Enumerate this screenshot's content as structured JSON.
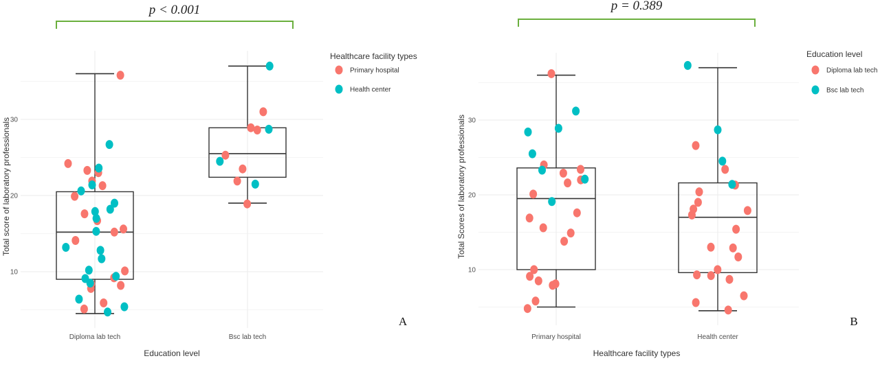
{
  "chart_data": [
    {
      "panel_letter": "A",
      "type": "box+scatter",
      "p_value": "p < 0.001",
      "xlabel": "Education level",
      "ylabel": "Total score of laboratory professionals",
      "categories": [
        "Diploma lab tech",
        "Bsc lab tech"
      ],
      "yticks": [
        10,
        20,
        30
      ],
      "ylim": [
        3.5,
        39
      ],
      "grid": true,
      "legend": {
        "title": "Healthcare facility types",
        "placement": "right",
        "entries": [
          {
            "label": "Primary hospital",
            "color": "#F8766D"
          },
          {
            "label": "Health center",
            "color": "#00BFC4"
          }
        ]
      },
      "boxes": [
        {
          "category": "Diploma lab tech",
          "min": 4.5,
          "q1": 9.0,
          "median": 15.2,
          "q3": 20.5,
          "max": 36.0
        },
        {
          "category": "Bsc lab tech",
          "min": 19.0,
          "q1": 22.4,
          "median": 25.5,
          "q3": 28.9,
          "max": 37.0
        }
      ],
      "series": [
        {
          "name": "Primary hospital",
          "color": "#F8766D",
          "points": [
            [
              "Diploma lab tech",
              35.8
            ],
            [
              "Diploma lab tech",
              24.2
            ],
            [
              "Diploma lab tech",
              23.0
            ],
            [
              "Diploma lab tech",
              23.3
            ],
            [
              "Diploma lab tech",
              21.9
            ],
            [
              "Diploma lab tech",
              21.3
            ],
            [
              "Diploma lab tech",
              19.9
            ],
            [
              "Diploma lab tech",
              17.6
            ],
            [
              "Diploma lab tech",
              16.7
            ],
            [
              "Diploma lab tech",
              15.6
            ],
            [
              "Diploma lab tech",
              15.2
            ],
            [
              "Diploma lab tech",
              14.1
            ],
            [
              "Diploma lab tech",
              10.1
            ],
            [
              "Diploma lab tech",
              9.2
            ],
            [
              "Diploma lab tech",
              8.4
            ],
            [
              "Diploma lab tech",
              8.2
            ],
            [
              "Diploma lab tech",
              7.8
            ],
            [
              "Diploma lab tech",
              5.9
            ],
            [
              "Diploma lab tech",
              5.1
            ],
            [
              "Bsc lab tech",
              31.0
            ],
            [
              "Bsc lab tech",
              28.9
            ],
            [
              "Bsc lab tech",
              28.6
            ],
            [
              "Bsc lab tech",
              23.5
            ],
            [
              "Bsc lab tech",
              25.3
            ],
            [
              "Bsc lab tech",
              21.9
            ],
            [
              "Bsc lab tech",
              18.9
            ]
          ]
        },
        {
          "name": "Health center",
          "color": "#00BFC4",
          "points": [
            [
              "Diploma lab tech",
              26.7
            ],
            [
              "Diploma lab tech",
              23.6
            ],
            [
              "Diploma lab tech",
              21.4
            ],
            [
              "Diploma lab tech",
              20.6
            ],
            [
              "Diploma lab tech",
              19.0
            ],
            [
              "Diploma lab tech",
              18.2
            ],
            [
              "Diploma lab tech",
              17.9
            ],
            [
              "Diploma lab tech",
              17.0
            ],
            [
              "Diploma lab tech",
              15.3
            ],
            [
              "Diploma lab tech",
              13.2
            ],
            [
              "Diploma lab tech",
              12.8
            ],
            [
              "Diploma lab tech",
              11.7
            ],
            [
              "Diploma lab tech",
              10.2
            ],
            [
              "Diploma lab tech",
              9.4
            ],
            [
              "Diploma lab tech",
              9.1
            ],
            [
              "Diploma lab tech",
              8.5
            ],
            [
              "Diploma lab tech",
              6.4
            ],
            [
              "Diploma lab tech",
              5.4
            ],
            [
              "Diploma lab tech",
              4.7
            ],
            [
              "Bsc lab tech",
              37.0
            ],
            [
              "Bsc lab tech",
              28.7
            ],
            [
              "Bsc lab tech",
              24.5
            ],
            [
              "Bsc lab tech",
              21.5
            ]
          ]
        }
      ]
    },
    {
      "panel_letter": "B",
      "type": "box+scatter",
      "p_value": "p = 0.389",
      "xlabel": "Healthcare facility types",
      "ylabel": "Total Scores of laboratory professionals",
      "categories": [
        "Primary hospital",
        "Health center"
      ],
      "yticks": [
        10,
        20,
        30
      ],
      "ylim": [
        3.5,
        39
      ],
      "grid": true,
      "legend": {
        "title": "Education level",
        "placement": "right",
        "entries": [
          {
            "label": "Diploma lab tech",
            "color": "#F8766D"
          },
          {
            "label": "Bsc lab tech",
            "color": "#00BFC4"
          }
        ]
      },
      "boxes": [
        {
          "category": "Primary hospital",
          "min": 5.0,
          "q1": 10.0,
          "median": 19.5,
          "q3": 23.6,
          "max": 36.0
        },
        {
          "category": "Health center",
          "min": 4.5,
          "q1": 9.6,
          "median": 17.0,
          "q3": 21.6,
          "max": 37.0
        }
      ],
      "series": [
        {
          "name": "Diploma lab tech",
          "color": "#F8766D",
          "points": [
            [
              "Primary hospital",
              36.2
            ],
            [
              "Primary hospital",
              24.0
            ],
            [
              "Primary hospital",
              23.4
            ],
            [
              "Primary hospital",
              22.9
            ],
            [
              "Primary hospital",
              22.0
            ],
            [
              "Primary hospital",
              21.6
            ],
            [
              "Primary hospital",
              20.1
            ],
            [
              "Primary hospital",
              17.6
            ],
            [
              "Primary hospital",
              16.9
            ],
            [
              "Primary hospital",
              15.6
            ],
            [
              "Primary hospital",
              14.9
            ],
            [
              "Primary hospital",
              13.8
            ],
            [
              "Primary hospital",
              10.0
            ],
            [
              "Primary hospital",
              9.1
            ],
            [
              "Primary hospital",
              8.5
            ],
            [
              "Primary hospital",
              8.1
            ],
            [
              "Primary hospital",
              7.9
            ],
            [
              "Primary hospital",
              5.8
            ],
            [
              "Primary hospital",
              4.8
            ],
            [
              "Health center",
              26.6
            ],
            [
              "Health center",
              23.4
            ],
            [
              "Health center",
              21.3
            ],
            [
              "Health center",
              20.4
            ],
            [
              "Health center",
              19.0
            ],
            [
              "Health center",
              18.1
            ],
            [
              "Health center",
              17.9
            ],
            [
              "Health center",
              17.3
            ],
            [
              "Health center",
              15.4
            ],
            [
              "Health center",
              13.0
            ],
            [
              "Health center",
              12.9
            ],
            [
              "Health center",
              11.7
            ],
            [
              "Health center",
              10.0
            ],
            [
              "Health center",
              9.3
            ],
            [
              "Health center",
              9.2
            ],
            [
              "Health center",
              8.7
            ],
            [
              "Health center",
              6.5
            ],
            [
              "Health center",
              5.6
            ],
            [
              "Health center",
              4.6
            ]
          ]
        },
        {
          "name": "Bsc lab tech",
          "color": "#00BFC4",
          "points": [
            [
              "Primary hospital",
              31.2
            ],
            [
              "Primary hospital",
              28.9
            ],
            [
              "Primary hospital",
              28.4
            ],
            [
              "Primary hospital",
              25.5
            ],
            [
              "Primary hospital",
              23.3
            ],
            [
              "Primary hospital",
              22.1
            ],
            [
              "Primary hospital",
              19.1
            ],
            [
              "Health center",
              37.3
            ],
            [
              "Health center",
              28.7
            ],
            [
              "Health center",
              24.5
            ],
            [
              "Health center",
              21.4
            ]
          ]
        }
      ]
    }
  ]
}
